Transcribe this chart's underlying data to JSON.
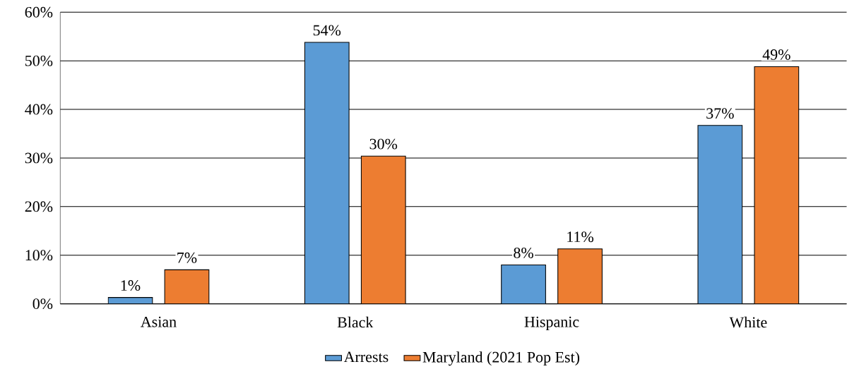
{
  "chart_data": {
    "type": "bar",
    "categories": [
      "Asian",
      "Black",
      "Hispanic",
      "White"
    ],
    "series": [
      {
        "name": "Arrests",
        "color": "#5b9bd5",
        "values": [
          1.3,
          53.8,
          8.0,
          36.7
        ],
        "value_labels": [
          "1%",
          "54%",
          "8%",
          "37%"
        ]
      },
      {
        "name": "Maryland (2021 Pop Est)",
        "color": "#ed7d31",
        "values": [
          7.0,
          30.4,
          11.3,
          48.8
        ],
        "value_labels": [
          "7%",
          "30%",
          "11%",
          "49%"
        ]
      }
    ],
    "ylim": [
      0,
      60
    ],
    "yticks": [
      {
        "value": 0,
        "label": "0%"
      },
      {
        "value": 10,
        "label": "10%"
      },
      {
        "value": 20,
        "label": "20%"
      },
      {
        "value": 30,
        "label": "30%"
      },
      {
        "value": 40,
        "label": "40%"
      },
      {
        "value": 50,
        "label": "50%"
      },
      {
        "value": 60,
        "label": "60%"
      }
    ],
    "grid": "y",
    "legend": "bottom"
  }
}
